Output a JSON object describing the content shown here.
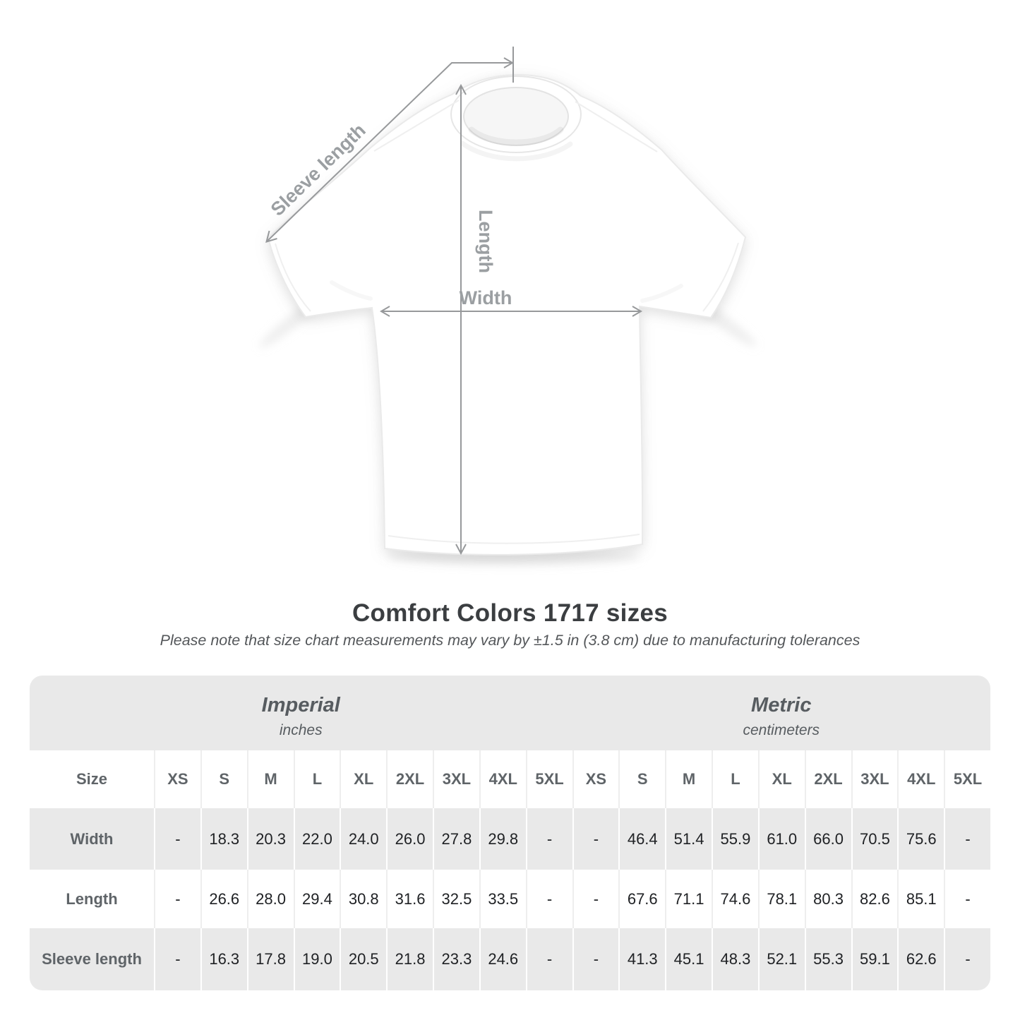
{
  "diagram": {
    "labels": {
      "sleeve": "Sleeve length",
      "length": "Length",
      "width": "Width"
    }
  },
  "title": "Comfort Colors 1717 sizes",
  "note": "Please note that size chart measurements may vary by ±1.5 in (3.8 cm) due to manufacturing tolerances",
  "table": {
    "groups": [
      {
        "name": "Imperial",
        "unit": "inches"
      },
      {
        "name": "Metric",
        "unit": "centimeters"
      }
    ],
    "size_label": "Size",
    "sizes": [
      "XS",
      "S",
      "M",
      "L",
      "XL",
      "2XL",
      "3XL",
      "4XL",
      "5XL"
    ],
    "rows": [
      {
        "label": "Width",
        "imperial": [
          "-",
          "18.3",
          "20.3",
          "22.0",
          "24.0",
          "26.0",
          "27.8",
          "29.8",
          "-"
        ],
        "metric": [
          "-",
          "46.4",
          "51.4",
          "55.9",
          "61.0",
          "66.0",
          "70.5",
          "75.6",
          "-"
        ]
      },
      {
        "label": "Length",
        "imperial": [
          "-",
          "26.6",
          "28.0",
          "29.4",
          "30.8",
          "31.6",
          "32.5",
          "33.5",
          "-"
        ],
        "metric": [
          "-",
          "67.6",
          "71.1",
          "74.6",
          "78.1",
          "80.3",
          "82.6",
          "85.1",
          "-"
        ]
      },
      {
        "label": "Sleeve length",
        "imperial": [
          "-",
          "16.3",
          "17.8",
          "19.0",
          "20.5",
          "21.8",
          "23.3",
          "24.6",
          "-"
        ],
        "metric": [
          "-",
          "41.3",
          "45.1",
          "48.3",
          "52.1",
          "55.3",
          "59.1",
          "62.6",
          "-"
        ]
      }
    ]
  },
  "colors": {
    "table_gray": "#e9e9e9",
    "header_text": "#575c60",
    "label_text": "#5f6468",
    "value_text": "#202225",
    "title_text": "#3b3e41",
    "note_text": "#54575a",
    "annotation_line": "#97999b",
    "annotation_label": "#9b9fa2",
    "tee_outline": "#eaeaea"
  }
}
